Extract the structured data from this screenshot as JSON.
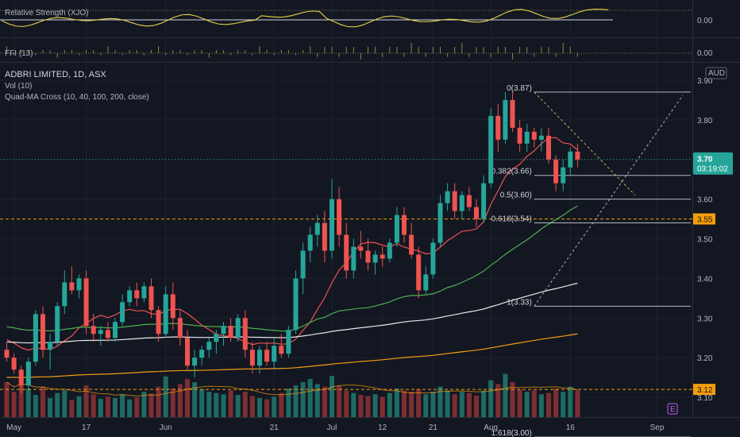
{
  "chart_data": {
    "type": "candlestick",
    "title": "ADBRI LIMITED, 1D, ASX",
    "legend": [
      "Vol (10)",
      "Quad-MA Cross (10, 40, 100, 200, close)"
    ],
    "currency": "AUD",
    "ylim": [
      3.05,
      3.93
    ],
    "y_ticks": [
      3.1,
      3.2,
      3.3,
      3.4,
      3.5,
      3.6,
      3.7,
      3.8,
      3.9
    ],
    "y_tick_labels": [
      "3.10",
      "3.20",
      "3.30",
      "3.40",
      "3.50",
      "3.60",
      "3.70",
      "3.80",
      "3.90"
    ],
    "x_labels": [
      {
        "label": "May",
        "bar": 1
      },
      {
        "label": "17",
        "bar": 11
      },
      {
        "label": "Jun",
        "bar": 22
      },
      {
        "label": "21",
        "bar": 37
      },
      {
        "label": "Jul",
        "bar": 45
      },
      {
        "label": "12",
        "bar": 52
      },
      {
        "label": "21",
        "bar": 59
      },
      {
        "label": "Aug",
        "bar": 67
      },
      {
        "label": "16",
        "bar": 78
      },
      {
        "label": "Sep",
        "bar": 90
      }
    ],
    "candles": [
      [
        3.22,
        3.24,
        3.19,
        3.2
      ],
      [
        3.2,
        3.21,
        3.16,
        3.17
      ],
      [
        3.17,
        3.18,
        3.11,
        3.13
      ],
      [
        3.13,
        3.2,
        3.12,
        3.19
      ],
      [
        3.19,
        3.32,
        3.18,
        3.31
      ],
      [
        3.31,
        3.33,
        3.2,
        3.22
      ],
      [
        3.22,
        3.26,
        3.17,
        3.24
      ],
      [
        3.24,
        3.34,
        3.23,
        3.33
      ],
      [
        3.33,
        3.42,
        3.31,
        3.39
      ],
      [
        3.39,
        3.43,
        3.36,
        3.37
      ],
      [
        3.37,
        3.41,
        3.35,
        3.4
      ],
      [
        3.4,
        3.42,
        3.26,
        3.28
      ],
      [
        3.28,
        3.31,
        3.24,
        3.26
      ],
      [
        3.26,
        3.28,
        3.23,
        3.27
      ],
      [
        3.27,
        3.29,
        3.24,
        3.25
      ],
      [
        3.25,
        3.3,
        3.24,
        3.29
      ],
      [
        3.29,
        3.36,
        3.28,
        3.34
      ],
      [
        3.34,
        3.38,
        3.33,
        3.37
      ],
      [
        3.37,
        3.39,
        3.33,
        3.35
      ],
      [
        3.35,
        3.39,
        3.34,
        3.38
      ],
      [
        3.38,
        3.4,
        3.3,
        3.32
      ],
      [
        3.32,
        3.33,
        3.24,
        3.26
      ],
      [
        3.26,
        3.38,
        3.25,
        3.36
      ],
      [
        3.36,
        3.39,
        3.27,
        3.3
      ],
      [
        3.3,
        3.32,
        3.23,
        3.25
      ],
      [
        3.25,
        3.27,
        3.17,
        3.18
      ],
      [
        3.18,
        3.22,
        3.15,
        3.2
      ],
      [
        3.2,
        3.23,
        3.18,
        3.22
      ],
      [
        3.22,
        3.25,
        3.2,
        3.24
      ],
      [
        3.24,
        3.27,
        3.21,
        3.26
      ],
      [
        3.26,
        3.29,
        3.23,
        3.28
      ],
      [
        3.28,
        3.3,
        3.24,
        3.25
      ],
      [
        3.25,
        3.31,
        3.24,
        3.3
      ],
      [
        3.3,
        3.32,
        3.2,
        3.22
      ],
      [
        3.22,
        3.24,
        3.16,
        3.18
      ],
      [
        3.18,
        3.23,
        3.16,
        3.22
      ],
      [
        3.22,
        3.24,
        3.18,
        3.19
      ],
      [
        3.19,
        3.25,
        3.17,
        3.23
      ],
      [
        3.23,
        3.26,
        3.2,
        3.21
      ],
      [
        3.21,
        3.28,
        3.2,
        3.27
      ],
      [
        3.27,
        3.42,
        3.26,
        3.4
      ],
      [
        3.4,
        3.49,
        3.36,
        3.47
      ],
      [
        3.47,
        3.53,
        3.44,
        3.51
      ],
      [
        3.51,
        3.56,
        3.48,
        3.54
      ],
      [
        3.54,
        3.57,
        3.44,
        3.47
      ],
      [
        3.47,
        3.65,
        3.45,
        3.6
      ],
      [
        3.6,
        3.63,
        3.48,
        3.51
      ],
      [
        3.51,
        3.54,
        3.4,
        3.42
      ],
      [
        3.42,
        3.5,
        3.4,
        3.48
      ],
      [
        3.48,
        3.52,
        3.45,
        3.47
      ],
      [
        3.47,
        3.5,
        3.42,
        3.44
      ],
      [
        3.44,
        3.47,
        3.41,
        3.46
      ],
      [
        3.46,
        3.48,
        3.43,
        3.45
      ],
      [
        3.45,
        3.5,
        3.44,
        3.49
      ],
      [
        3.49,
        3.58,
        3.48,
        3.56
      ],
      [
        3.56,
        3.58,
        3.49,
        3.51
      ],
      [
        3.51,
        3.54,
        3.45,
        3.46
      ],
      [
        3.46,
        3.48,
        3.35,
        3.37
      ],
      [
        3.37,
        3.43,
        3.36,
        3.41
      ],
      [
        3.41,
        3.5,
        3.4,
        3.49
      ],
      [
        3.49,
        3.61,
        3.48,
        3.59
      ],
      [
        3.59,
        3.64,
        3.57,
        3.62
      ],
      [
        3.62,
        3.64,
        3.55,
        3.57
      ],
      [
        3.57,
        3.62,
        3.55,
        3.61
      ],
      [
        3.61,
        3.63,
        3.57,
        3.58
      ],
      [
        3.58,
        3.6,
        3.53,
        3.55
      ],
      [
        3.55,
        3.66,
        3.54,
        3.64
      ],
      [
        3.64,
        3.83,
        3.63,
        3.81
      ],
      [
        3.81,
        3.84,
        3.72,
        3.75
      ],
      [
        3.75,
        3.87,
        3.74,
        3.85
      ],
      [
        3.85,
        3.87,
        3.77,
        3.78
      ],
      [
        3.78,
        3.8,
        3.72,
        3.74
      ],
      [
        3.74,
        3.79,
        3.72,
        3.77
      ],
      [
        3.77,
        3.78,
        3.73,
        3.75
      ],
      [
        3.75,
        3.78,
        3.72,
        3.76
      ],
      [
        3.76,
        3.78,
        3.69,
        3.7
      ],
      [
        3.7,
        3.71,
        3.62,
        3.64
      ],
      [
        3.64,
        3.7,
        3.62,
        3.68
      ],
      [
        3.68,
        3.73,
        3.66,
        3.72
      ],
      [
        3.72,
        3.74,
        3.68,
        3.7
      ]
    ],
    "volume": [
      0.55,
      0.4,
      0.62,
      0.45,
      0.35,
      0.48,
      0.3,
      0.38,
      0.42,
      0.27,
      0.33,
      0.5,
      0.36,
      0.29,
      0.32,
      0.3,
      0.36,
      0.28,
      0.31,
      0.4,
      0.37,
      0.48,
      0.64,
      0.45,
      0.52,
      0.6,
      0.55,
      0.44,
      0.4,
      0.38,
      0.36,
      0.42,
      0.35,
      0.4,
      0.33,
      0.3,
      0.28,
      0.32,
      0.38,
      0.45,
      0.5,
      0.55,
      0.6,
      0.52,
      0.48,
      0.65,
      0.5,
      0.42,
      0.38,
      0.35,
      0.33,
      0.36,
      0.32,
      0.38,
      0.45,
      0.42,
      0.4,
      0.44,
      0.36,
      0.4,
      0.48,
      0.42,
      0.36,
      0.4,
      0.38,
      0.34,
      0.42,
      0.58,
      0.52,
      0.68,
      0.55,
      0.44,
      0.4,
      0.42,
      0.36,
      0.38,
      0.45,
      0.4,
      0.48,
      0.42
    ],
    "series": [
      {
        "name": "MA 10",
        "color": "#f05252"
      },
      {
        "name": "MA 40",
        "color": "#4caf50"
      },
      {
        "name": "MA 100",
        "color": "#e8e8e8"
      },
      {
        "name": "MA 200",
        "color": "#f39c12"
      }
    ],
    "levels": [
      {
        "price": 3.55,
        "label": "3.55",
        "color": "#f59d0a"
      },
      {
        "price": 3.12,
        "label": "3.12",
        "color": "#f59d0a"
      }
    ],
    "last_price": {
      "price": 3.7,
      "label": "3.70",
      "countdown": "03:19:02",
      "color": "#26a69a"
    },
    "fib_levels": [
      {
        "price": 3.87,
        "label": "0(3.87)"
      },
      {
        "price": 3.66,
        "label": "0.382(3.66)"
      },
      {
        "price": 3.6,
        "label": "0.5(3.60)"
      },
      {
        "price": 3.54,
        "label": "0.618(3.54)"
      },
      {
        "price": 3.33,
        "label": "1(3.33)"
      },
      {
        "price": 3.0,
        "label": "1.618(3.00)"
      }
    ],
    "rs_panel": {
      "title": "Relative Strength (XJO)",
      "tick_label": "0.00"
    },
    "ffi_panel": {
      "title": "FFI (13)",
      "tick_label": "0.00"
    },
    "e_badge": "E"
  }
}
